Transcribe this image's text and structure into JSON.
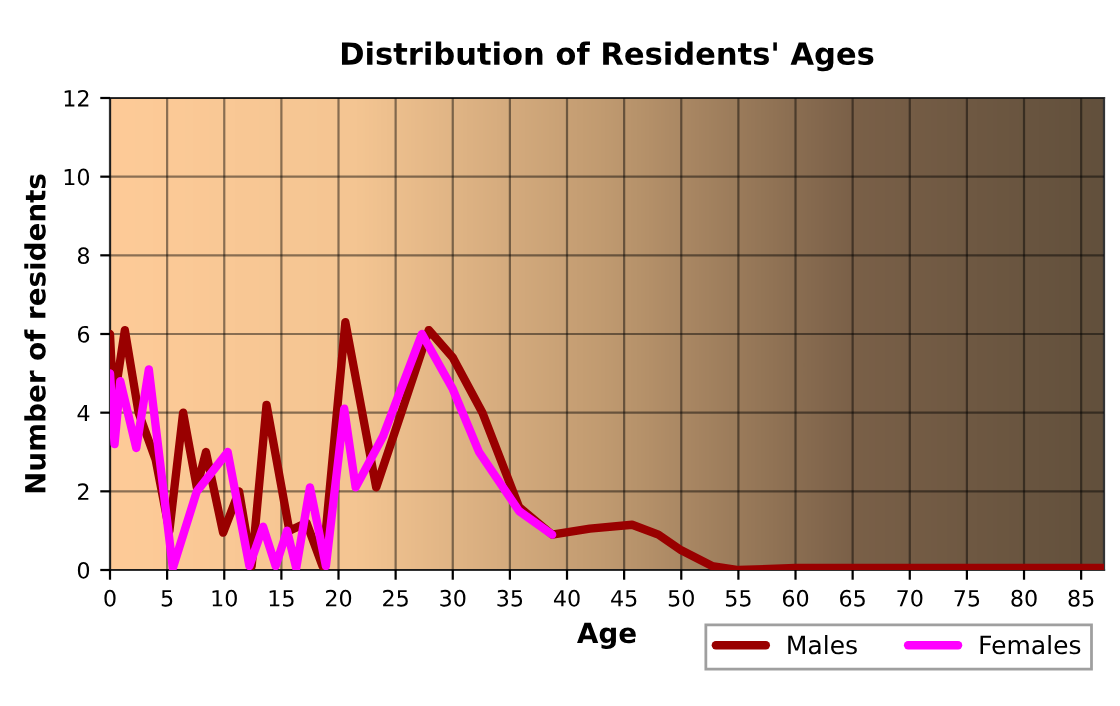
{
  "chart_data": {
    "type": "line",
    "title": "Distribution of Residents' Ages",
    "xlabel": "Age",
    "ylabel": "Number of residents",
    "xlim": [
      0,
      87
    ],
    "ylim": [
      0,
      12
    ],
    "xticks": [
      0,
      5,
      10,
      15,
      20,
      25,
      30,
      35,
      40,
      45,
      50,
      55,
      60,
      65,
      70,
      75,
      80,
      85
    ],
    "yticks": [
      0,
      2,
      4,
      6,
      8,
      10,
      12
    ],
    "grid": true,
    "legend": "bottom right",
    "line_style": "solid",
    "marker": "none",
    "series": [
      {
        "name": "Males",
        "color": "#990000",
        "x": [
          0,
          0.3,
          1.3,
          2.5,
          4,
          5.2,
          6.4,
          7.6,
          8.4,
          9.9,
          11.3,
          12.4,
          13.7,
          15.7,
          17.2,
          18.6,
          20.6,
          23.3,
          25.5,
          27.9,
          30,
          32.6,
          35.8,
          38.7,
          42,
          45.7,
          48,
          50,
          52.7,
          55,
          60,
          70,
          80,
          87
        ],
        "values": [
          6,
          4.2,
          6.1,
          4,
          2.8,
          1,
          4,
          2.1,
          3,
          0.95,
          2,
          0.1,
          4.2,
          1,
          1.2,
          0.1,
          6.3,
          2.1,
          4,
          6.1,
          5.4,
          4,
          1.6,
          0.9,
          1.05,
          1.15,
          0.9,
          0.5,
          0.1,
          0,
          0.05,
          0.05,
          0.05,
          0.05
        ]
      },
      {
        "name": "Females",
        "color": "#ff00ff",
        "x": [
          0,
          0.4,
          0.9,
          2.3,
          3.4,
          5.5,
          7.6,
          10.3,
          12.2,
          13.4,
          14.5,
          15.5,
          16.3,
          17.5,
          18.9,
          20.5,
          21.5,
          23.9,
          27.3,
          30,
          32.3,
          35.8,
          38.7
        ],
        "values": [
          5,
          3.2,
          4.8,
          3.1,
          5.1,
          0.05,
          2,
          3,
          0.1,
          1.1,
          0.1,
          1,
          0.05,
          2.1,
          0.1,
          4.1,
          2.1,
          3.4,
          6,
          4.6,
          3,
          1.5,
          0.9
        ]
      }
    ]
  }
}
